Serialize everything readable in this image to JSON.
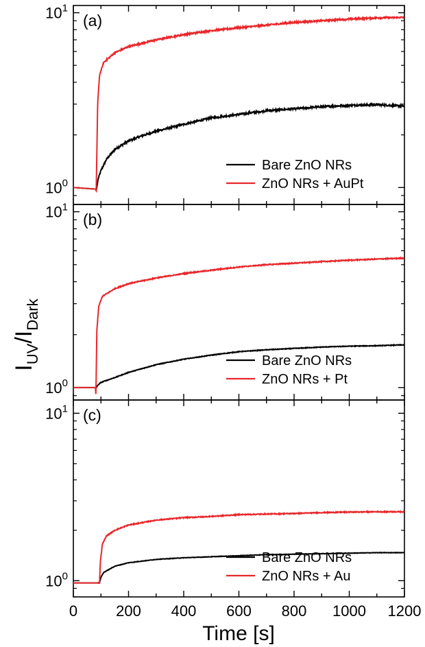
{
  "chart_data": {
    "type": "line",
    "xlabel": "Time [s]",
    "ylabel": {
      "main": "I",
      "sub1": "UV",
      "sep": "/I",
      "sub2": "Dark"
    },
    "xlim": [
      0,
      1200
    ],
    "xticks": [
      "0",
      "200",
      "400",
      "600",
      "800",
      "1000",
      "1200"
    ],
    "xtick_values": [
      0,
      200,
      400,
      600,
      800,
      1000,
      1200
    ],
    "yscale": "log",
    "grid": false,
    "legend_position": "bottom-right",
    "colors": {
      "bare": "#000000",
      "coated": "#e8262a"
    },
    "panels": [
      {
        "label": "(a)",
        "ylim": [
          0.8,
          11
        ],
        "yticks": [
          {
            "value": 1,
            "base": "10",
            "exp": "0"
          },
          {
            "value": 10,
            "base": "10",
            "exp": "1"
          }
        ],
        "series": [
          {
            "name": "Bare ZnO NRs",
            "color": "#000000",
            "noise": 0.012,
            "points": [
              [
                0,
                1.0
              ],
              [
                80,
                0.98
              ],
              [
                83,
                0.96
              ],
              [
                90,
                1.12
              ],
              [
                100,
                1.25
              ],
              [
                120,
                1.45
              ],
              [
                150,
                1.65
              ],
              [
                200,
                1.85
              ],
              [
                250,
                1.98
              ],
              [
                300,
                2.1
              ],
              [
                400,
                2.3
              ],
              [
                500,
                2.5
              ],
              [
                600,
                2.62
              ],
              [
                700,
                2.75
              ],
              [
                800,
                2.82
              ],
              [
                900,
                2.9
              ],
              [
                1000,
                2.95
              ],
              [
                1100,
                2.98
              ],
              [
                1200,
                2.92
              ]
            ]
          },
          {
            "name": "ZnO NRs + AuPt",
            "color": "#e8262a",
            "noise": 0.01,
            "points": [
              [
                0,
                1.0
              ],
              [
                80,
                0.98
              ],
              [
                83,
                0.96
              ],
              [
                88,
                3.0
              ],
              [
                95,
                4.4
              ],
              [
                110,
                5.2
              ],
              [
                150,
                5.9
              ],
              [
                200,
                6.4
              ],
              [
                300,
                7.0
              ],
              [
                400,
                7.5
              ],
              [
                500,
                7.9
              ],
              [
                600,
                8.2
              ],
              [
                700,
                8.5
              ],
              [
                800,
                8.8
              ],
              [
                900,
                9.0
              ],
              [
                1000,
                9.2
              ],
              [
                1100,
                9.35
              ],
              [
                1200,
                9.4
              ]
            ]
          }
        ]
      },
      {
        "label": "(b)",
        "ylim": [
          0.85,
          11
        ],
        "yticks": [
          {
            "value": 1,
            "base": "10",
            "exp": "0"
          },
          {
            "value": 10,
            "base": "10",
            "exp": "1"
          }
        ],
        "series": [
          {
            "name": "Bare ZnO NRs",
            "color": "#000000",
            "noise": 0.004,
            "points": [
              [
                0,
                1.0
              ],
              [
                80,
                1.0
              ],
              [
                82,
                0.99
              ],
              [
                88,
                1.03
              ],
              [
                100,
                1.07
              ],
              [
                150,
                1.14
              ],
              [
                200,
                1.22
              ],
              [
                300,
                1.35
              ],
              [
                400,
                1.45
              ],
              [
                500,
                1.53
              ],
              [
                600,
                1.6
              ],
              [
                700,
                1.64
              ],
              [
                800,
                1.67
              ],
              [
                900,
                1.7
              ],
              [
                1000,
                1.72
              ],
              [
                1100,
                1.73
              ],
              [
                1200,
                1.75
              ]
            ]
          },
          {
            "name": "ZnO NRs + Pt",
            "color": "#e8262a",
            "noise": 0.006,
            "points": [
              [
                0,
                1.0
              ],
              [
                80,
                1.0
              ],
              [
                82,
                0.9
              ],
              [
                85,
                2.1
              ],
              [
                92,
                2.9
              ],
              [
                105,
                3.3
              ],
              [
                150,
                3.65
              ],
              [
                200,
                3.9
              ],
              [
                300,
                4.2
              ],
              [
                400,
                4.45
              ],
              [
                500,
                4.65
              ],
              [
                600,
                4.85
              ],
              [
                700,
                5.0
              ],
              [
                800,
                5.1
              ],
              [
                900,
                5.2
              ],
              [
                1000,
                5.3
              ],
              [
                1100,
                5.38
              ],
              [
                1200,
                5.45
              ]
            ]
          }
        ]
      },
      {
        "label": "(c)",
        "ylim": [
          0.8,
          12
        ],
        "yticks": [
          {
            "value": 1,
            "base": "10",
            "exp": "0"
          },
          {
            "value": 10,
            "base": "10",
            "exp": "1"
          }
        ],
        "series": [
          {
            "name": "Bare ZnO NRs",
            "color": "#000000",
            "noise": 0.003,
            "points": [
              [
                0,
                0.97
              ],
              [
                95,
                0.97
              ],
              [
                100,
                1.05
              ],
              [
                110,
                1.12
              ],
              [
                150,
                1.22
              ],
              [
                200,
                1.28
              ],
              [
                300,
                1.34
              ],
              [
                400,
                1.37
              ],
              [
                500,
                1.39
              ],
              [
                600,
                1.41
              ],
              [
                700,
                1.43
              ],
              [
                800,
                1.44
              ],
              [
                900,
                1.45
              ],
              [
                1000,
                1.46
              ],
              [
                1100,
                1.47
              ],
              [
                1200,
                1.47
              ]
            ]
          },
          {
            "name": "ZnO NRs + Au",
            "color": "#e8262a",
            "noise": 0.006,
            "points": [
              [
                0,
                0.97
              ],
              [
                95,
                0.97
              ],
              [
                98,
                1.3
              ],
              [
                105,
                1.65
              ],
              [
                120,
                1.85
              ],
              [
                150,
                2.0
              ],
              [
                200,
                2.15
              ],
              [
                300,
                2.3
              ],
              [
                400,
                2.38
              ],
              [
                500,
                2.42
              ],
              [
                600,
                2.48
              ],
              [
                700,
                2.5
              ],
              [
                800,
                2.52
              ],
              [
                900,
                2.55
              ],
              [
                1000,
                2.57
              ],
              [
                1100,
                2.58
              ],
              [
                1200,
                2.58
              ]
            ]
          }
        ]
      }
    ]
  }
}
